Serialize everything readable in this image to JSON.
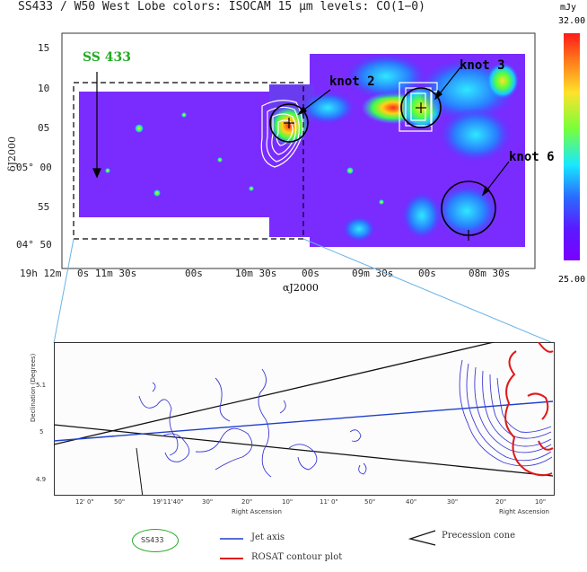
{
  "top_panel": {
    "title": "SS433 / W50 West Lobe  colors: ISOCAM 15 μm  levels: CO(1−0)",
    "y_ticks": [
      "15",
      "10",
      "05",
      "05° 00",
      "55",
      "04° 50"
    ],
    "y_axis_label": "δJ2000",
    "x_ticks": [
      "19h 12m",
      "0s 11m 30s",
      "00s",
      "10m 30s",
      "00s",
      "09m 30s",
      "00s",
      "08m 30s"
    ],
    "x_axis_label": "αJ2000",
    "source_label": "SS 433",
    "knots": [
      "knot 2",
      "knot 3",
      "knot 6"
    ],
    "colorbar": {
      "unit": "mJy",
      "max": "32.00",
      "min": "25.00"
    },
    "colors": {
      "map_base": "#7a2cff",
      "source_label": "#22aa22"
    }
  },
  "bottom_panel": {
    "y_axis_label": "Declination (Degrees)",
    "y_ticks": [
      "5.1",
      "5",
      "4.9"
    ],
    "x_ticks": [
      "12' 0\"",
      "50\"",
      "19ʰ11'40\"",
      "30\"",
      "20\"",
      "10\"",
      "11' 0\"",
      "50\"",
      "40\"",
      "30\"",
      "20\"",
      "10\""
    ],
    "x_axis_label": "Right Ascension",
    "source_label": "SS433",
    "legend": {
      "jet_axis": "Jet axis",
      "precession_cone": "Precession cone",
      "rosat": "ROSAT contour plot"
    },
    "colors": {
      "jet": "#1f3fcc",
      "rosat": "#e01818",
      "contours": "#3a3ad8",
      "source_ring": "#22aa22"
    }
  }
}
